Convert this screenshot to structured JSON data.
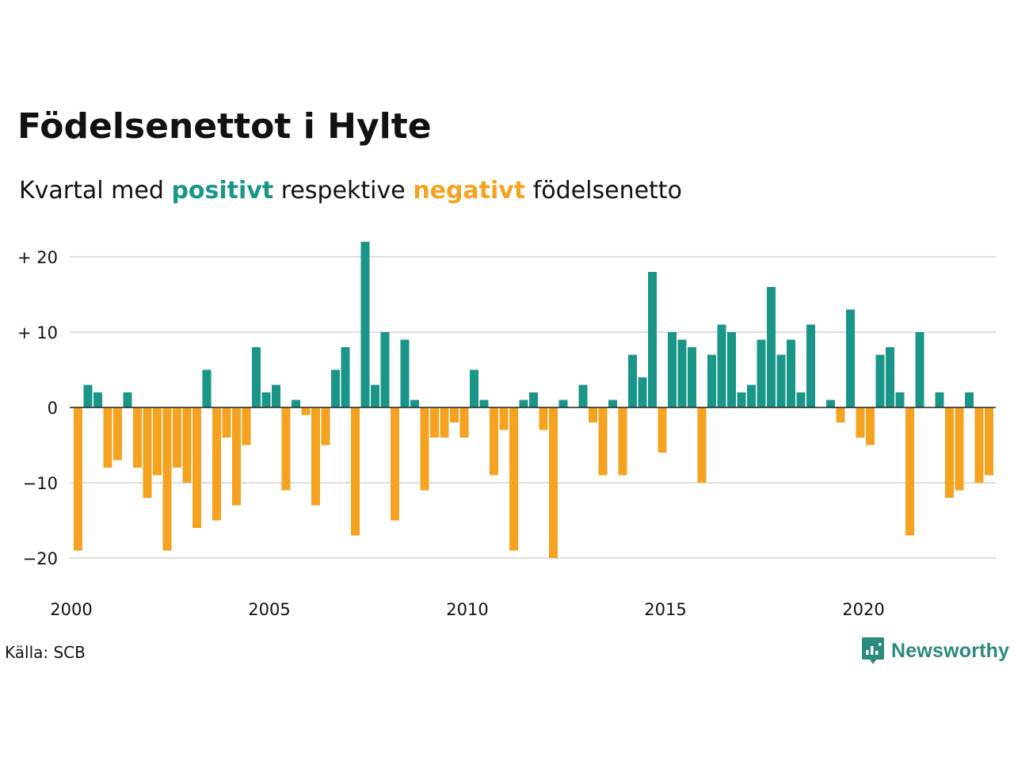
{
  "title": "Födelsenettot i Hylte",
  "subtitle": {
    "prefix": "Kvartal med",
    "positive_word": "positivt",
    "middle": "respektive",
    "negative_word": "negativt",
    "suffix": "födelsenetto"
  },
  "colors": {
    "positive": "#1a9688",
    "negative": "#f4a21f",
    "grid": "#dddddd",
    "axis": "#222222"
  },
  "source": "Källa: SCB",
  "brand": {
    "name": "Newsworthy",
    "icon": "newsworthy-logo-icon"
  },
  "chart_data": {
    "type": "bar",
    "title": "Födelsenettot i Hylte",
    "xlabel": "",
    "ylabel": "",
    "ylim": [
      -25,
      22
    ],
    "y_ticks": [
      {
        "value": 20,
        "label": "+ 20"
      },
      {
        "value": 10,
        "label": "+ 10"
      },
      {
        "value": 0,
        "label": "0"
      },
      {
        "value": -10,
        "label": "−10"
      },
      {
        "value": -20,
        "label": "−20"
      }
    ],
    "x_ticks": [
      "2000",
      "2005",
      "2010",
      "2015",
      "2020"
    ],
    "start_year": 2000,
    "grid": true,
    "values": [
      -19,
      3,
      2,
      -8,
      -7,
      2,
      -8,
      -12,
      -9,
      -19,
      -8,
      -10,
      -16,
      5,
      -15,
      -4,
      -13,
      -5,
      8,
      2,
      3,
      -11,
      1,
      -1,
      -13,
      -5,
      5,
      8,
      -17,
      22,
      3,
      10,
      -15,
      9,
      1,
      -11,
      -4,
      -4,
      -2,
      -4,
      5,
      1,
      -9,
      -3,
      -19,
      1,
      2,
      -3,
      -20,
      1,
      0,
      3,
      -2,
      -9,
      1,
      -9,
      7,
      4,
      18,
      -6,
      10,
      9,
      8,
      -10,
      7,
      11,
      10,
      2,
      3,
      9,
      16,
      7,
      9,
      2,
      11,
      0,
      1,
      -2,
      13,
      -4,
      -5,
      7,
      8,
      2,
      -17,
      10,
      0,
      2,
      -12,
      -11,
      2,
      -10,
      -9
    ]
  }
}
